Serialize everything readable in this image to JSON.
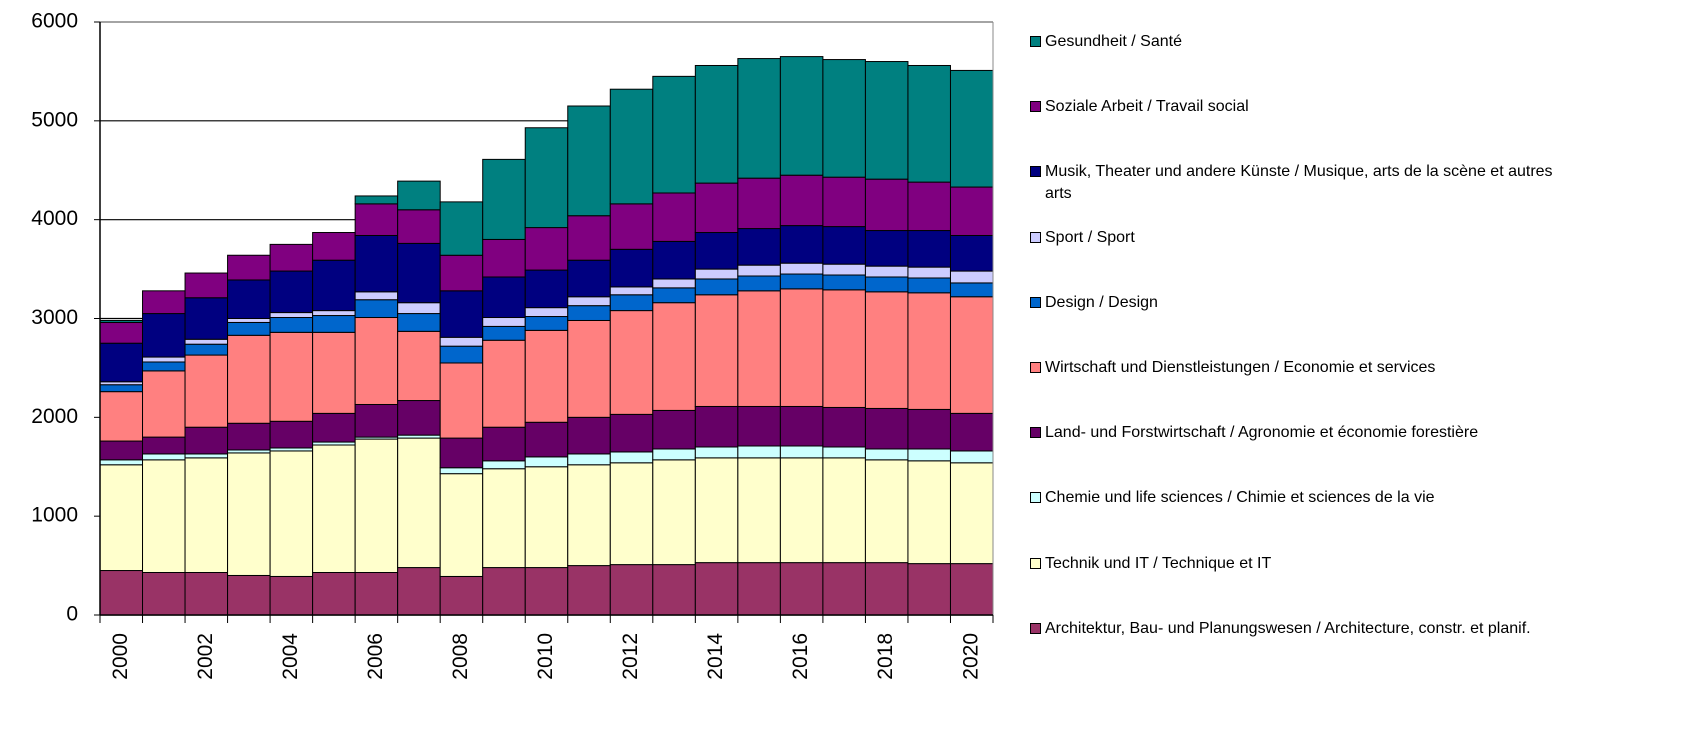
{
  "chart_data": {
    "type": "stacked_bar",
    "categories": [
      "2000",
      null,
      "2002",
      null,
      "2004",
      null,
      "2006",
      null,
      "2008",
      null,
      "2010",
      null,
      "2012",
      null,
      "2014",
      null,
      "2016",
      null,
      "2018",
      null,
      "2020"
    ],
    "ylim": [
      0,
      6000
    ],
    "yticks": [
      0,
      1000,
      2000,
      3000,
      4000,
      5000,
      6000
    ],
    "grid": true,
    "legend": "right",
    "series": [
      {
        "name": "Architektur, Bau- und Planungswesen / Architecture, constr. et planif.",
        "color": "#993366",
        "values": [
          450,
          430,
          430,
          400,
          390,
          430,
          430,
          480,
          390,
          480,
          480,
          500,
          510,
          510,
          530,
          530,
          530,
          530,
          530,
          520,
          520
        ]
      },
      {
        "name": "Technik und IT  / Technique et IT",
        "color": "#ffffcc",
        "values": [
          1070,
          1140,
          1160,
          1240,
          1270,
          1290,
          1350,
          1310,
          1040,
          1000,
          1020,
          1020,
          1030,
          1060,
          1060,
          1060,
          1060,
          1060,
          1040,
          1040,
          1020
        ]
      },
      {
        "name": "Chemie und life sciences / Chimie et sciences de la vie",
        "color": "#ccffff",
        "values": [
          50,
          60,
          40,
          30,
          30,
          30,
          20,
          30,
          60,
          80,
          100,
          110,
          110,
          110,
          110,
          120,
          120,
          110,
          110,
          120,
          120
        ]
      },
      {
        "name": "Land- und Forstwirtschaft / Agronomie et économie forestière",
        "color": "#660066",
        "values": [
          190,
          170,
          270,
          270,
          270,
          290,
          330,
          350,
          300,
          340,
          350,
          370,
          380,
          390,
          410,
          400,
          400,
          400,
          410,
          400,
          380
        ]
      },
      {
        "name": "Wirtschaft und Dienstleistungen / Economie et services",
        "color": "#ff8080",
        "values": [
          500,
          670,
          730,
          890,
          900,
          820,
          880,
          700,
          760,
          880,
          930,
          980,
          1050,
          1090,
          1130,
          1170,
          1190,
          1190,
          1180,
          1180,
          1180
        ]
      },
      {
        "name": "Design / Design",
        "color": "#0066cc",
        "values": [
          70,
          90,
          110,
          130,
          150,
          170,
          180,
          180,
          170,
          140,
          140,
          150,
          160,
          150,
          160,
          150,
          150,
          150,
          150,
          150,
          140
        ]
      },
      {
        "name": "Sport / Sport",
        "color": "#ccccff",
        "values": [
          30,
          50,
          50,
          40,
          50,
          50,
          80,
          110,
          90,
          90,
          90,
          90,
          80,
          90,
          100,
          110,
          110,
          110,
          110,
          110,
          120
        ]
      },
      {
        "name": "Musik, Theater und andere Künste / Musique, arts de la scène et autres arts",
        "color": "#000080",
        "values": [
          390,
          440,
          420,
          390,
          420,
          510,
          570,
          600,
          470,
          410,
          380,
          370,
          380,
          380,
          370,
          370,
          380,
          380,
          360,
          370,
          360
        ]
      },
      {
        "name": "Soziale Arbeit / Travail social",
        "color": "#800080",
        "values": [
          210,
          230,
          250,
          250,
          270,
          280,
          320,
          340,
          360,
          380,
          430,
          450,
          460,
          490,
          500,
          510,
          510,
          500,
          520,
          490,
          490
        ]
      },
      {
        "name": "Gesundheit / Santé",
        "color": "#008080",
        "values": [
          20,
          0,
          0,
          0,
          0,
          0,
          80,
          290,
          540,
          810,
          1010,
          1110,
          1160,
          1180,
          1190,
          1210,
          1200,
          1190,
          1190,
          1180,
          1180
        ]
      }
    ]
  }
}
